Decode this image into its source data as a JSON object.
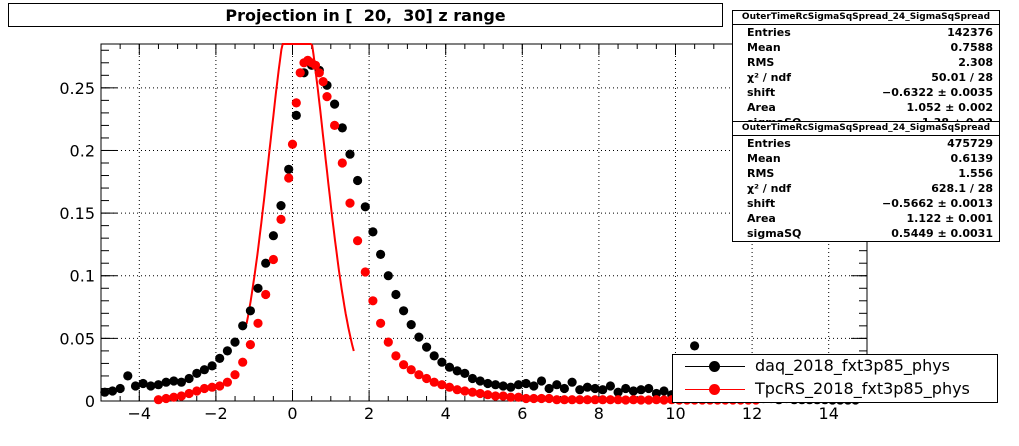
{
  "title": "Projection in [  20,  30] z range",
  "stats_boxes": [
    {
      "header": "OuterTimeRcSigmaSqSpread_24_SigmaSqSpread",
      "rows": [
        {
          "label": "Entries",
          "value": "142376"
        },
        {
          "label": "Mean",
          "value": "0.7588"
        },
        {
          "label": "RMS",
          "value": "2.308"
        },
        {
          "label": "χ² / ndf",
          "value": "50.01 / 28"
        },
        {
          "label": "shift",
          "value": "−0.6322 ± 0.0035"
        },
        {
          "label": "Area",
          "value": "1.052 ± 0.002"
        },
        {
          "label": "sigmaSQ",
          "value": "1.38 ± 0.02"
        }
      ]
    },
    {
      "header": "OuterTimeRcSigmaSqSpread_24_SigmaSqSpread",
      "rows": [
        {
          "label": "Entries",
          "value": "475729"
        },
        {
          "label": "Mean",
          "value": "0.6139"
        },
        {
          "label": "RMS",
          "value": "1.556"
        },
        {
          "label": "χ² / ndf",
          "value": "628.1 / 28"
        },
        {
          "label": "shift",
          "value": "−0.5662 ± 0.0013"
        },
        {
          "label": "Area",
          "value": "1.122 ± 0.001"
        },
        {
          "label": "sigmaSQ",
          "value": "0.5449 ± 0.0031"
        }
      ]
    }
  ],
  "legend": [
    {
      "label": "daq_2018_fxt3p85_phys",
      "color": "#000000"
    },
    {
      "label": "TpcRS_2018_fxt3p85_phys",
      "color": "#ff0000"
    }
  ],
  "chart_data": {
    "type": "scatter",
    "title": "Projection in [  20,  30] z range",
    "xlim": [
      -5,
      15
    ],
    "ylim": [
      0,
      0.285
    ],
    "grid": true,
    "legend_position": "bottom-right",
    "x_ticks": [
      {
        "value": -4,
        "label": "−4"
      },
      {
        "value": -2,
        "label": "−2"
      },
      {
        "value": 0,
        "label": "0"
      },
      {
        "value": 2,
        "label": "2"
      },
      {
        "value": 4,
        "label": "4"
      },
      {
        "value": 6,
        "label": "6"
      },
      {
        "value": 8,
        "label": "8"
      },
      {
        "value": 10,
        "label": "10"
      },
      {
        "value": 12,
        "label": "12"
      },
      {
        "value": 14,
        "label": "14"
      }
    ],
    "y_ticks": [
      {
        "value": 0,
        "label": "0"
      },
      {
        "value": 0.05,
        "label": "0.05"
      },
      {
        "value": 0.1,
        "label": "0.1"
      },
      {
        "value": 0.15,
        "label": "0.15"
      },
      {
        "value": 0.2,
        "label": "0.2"
      },
      {
        "value": 0.25,
        "label": "0.25"
      }
    ],
    "series": [
      {
        "name": "daq_2018_fxt3p85_phys",
        "color": "#000000",
        "points": [
          [
            -4.9,
            0.007
          ],
          [
            -4.7,
            0.008
          ],
          [
            -4.5,
            0.01
          ],
          [
            -4.3,
            0.02
          ],
          [
            -4.1,
            0.012
          ],
          [
            -3.9,
            0.014
          ],
          [
            -3.7,
            0.012
          ],
          [
            -3.5,
            0.013
          ],
          [
            -3.3,
            0.015
          ],
          [
            -3.1,
            0.016
          ],
          [
            -2.9,
            0.015
          ],
          [
            -2.7,
            0.018
          ],
          [
            -2.5,
            0.022
          ],
          [
            -2.3,
            0.025
          ],
          [
            -2.1,
            0.028
          ],
          [
            -1.9,
            0.034
          ],
          [
            -1.7,
            0.04
          ],
          [
            -1.5,
            0.047
          ],
          [
            -1.3,
            0.06
          ],
          [
            -1.1,
            0.072
          ],
          [
            -0.9,
            0.09
          ],
          [
            -0.7,
            0.11
          ],
          [
            -0.5,
            0.132
          ],
          [
            -0.3,
            0.156
          ],
          [
            -0.1,
            0.185
          ],
          [
            0.1,
            0.228
          ],
          [
            0.3,
            0.262
          ],
          [
            0.5,
            0.268
          ],
          [
            0.7,
            0.264
          ],
          [
            0.9,
            0.252
          ],
          [
            1.1,
            0.237
          ],
          [
            1.3,
            0.218
          ],
          [
            1.5,
            0.197
          ],
          [
            1.7,
            0.176
          ],
          [
            1.9,
            0.155
          ],
          [
            2.1,
            0.135
          ],
          [
            2.3,
            0.117
          ],
          [
            2.5,
            0.1
          ],
          [
            2.7,
            0.085
          ],
          [
            2.9,
            0.072
          ],
          [
            3.1,
            0.061
          ],
          [
            3.3,
            0.051
          ],
          [
            3.5,
            0.043
          ],
          [
            3.7,
            0.036
          ],
          [
            3.9,
            0.031
          ],
          [
            4.1,
            0.027
          ],
          [
            4.3,
            0.024
          ],
          [
            4.5,
            0.022
          ],
          [
            4.7,
            0.018
          ],
          [
            4.9,
            0.016
          ],
          [
            5.1,
            0.014
          ],
          [
            5.3,
            0.013
          ],
          [
            5.5,
            0.012
          ],
          [
            5.7,
            0.011
          ],
          [
            5.9,
            0.013
          ],
          [
            6.1,
            0.014
          ],
          [
            6.3,
            0.012
          ],
          [
            6.5,
            0.016
          ],
          [
            6.7,
            0.01
          ],
          [
            6.9,
            0.013
          ],
          [
            7.1,
            0.01
          ],
          [
            7.3,
            0.015
          ],
          [
            7.5,
            0.009
          ],
          [
            7.7,
            0.011
          ],
          [
            7.9,
            0.01
          ],
          [
            8.1,
            0.009
          ],
          [
            8.3,
            0.012
          ],
          [
            8.5,
            0.007
          ],
          [
            8.7,
            0.01
          ],
          [
            8.9,
            0.008
          ],
          [
            9.1,
            0.009
          ],
          [
            9.3,
            0.01
          ],
          [
            9.5,
            0.006
          ],
          [
            9.7,
            0.008
          ],
          [
            9.9,
            0.005
          ],
          [
            10.1,
            0.006
          ],
          [
            10.3,
            0.005
          ],
          [
            10.5,
            0.044
          ],
          [
            10.7,
            0.006
          ],
          [
            10.9,
            0.004
          ],
          [
            11.1,
            0.005
          ],
          [
            11.3,
            0.003
          ],
          [
            11.5,
            0.004
          ],
          [
            11.7,
            0.003
          ],
          [
            11.9,
            0.002
          ],
          [
            12.1,
            0.003
          ],
          [
            12.3,
            0.002
          ],
          [
            12.5,
            0.002
          ],
          [
            12.7,
            0.001
          ],
          [
            12.9,
            0.002
          ],
          [
            13.1,
            0.001
          ],
          [
            13.3,
            0.001
          ],
          [
            13.5,
            0.001
          ],
          [
            13.7,
            0.001
          ],
          [
            13.9,
            0.001
          ],
          [
            14.1,
            0.0
          ],
          [
            14.3,
            0.0
          ],
          [
            14.5,
            0.0
          ],
          [
            14.7,
            0.0
          ]
        ]
      },
      {
        "name": "TpcRS_2018_fxt3p85_phys",
        "color": "#ff0000",
        "points": [
          [
            -3.5,
            0.001
          ],
          [
            -3.3,
            0.002
          ],
          [
            -3.1,
            0.003
          ],
          [
            -2.9,
            0.004
          ],
          [
            -2.7,
            0.006
          ],
          [
            -2.5,
            0.008
          ],
          [
            -2.3,
            0.01
          ],
          [
            -2.1,
            0.011
          ],
          [
            -1.9,
            0.012
          ],
          [
            -1.7,
            0.015
          ],
          [
            -1.5,
            0.021
          ],
          [
            -1.3,
            0.031
          ],
          [
            -1.1,
            0.045
          ],
          [
            -0.9,
            0.062
          ],
          [
            -0.7,
            0.085
          ],
          [
            -0.5,
            0.113
          ],
          [
            -0.3,
            0.145
          ],
          [
            -0.1,
            0.178
          ],
          [
            0.0,
            0.205
          ],
          [
            0.1,
            0.238
          ],
          [
            0.2,
            0.262
          ],
          [
            0.3,
            0.27
          ],
          [
            0.4,
            0.272
          ],
          [
            0.5,
            0.27
          ],
          [
            0.6,
            0.268
          ],
          [
            0.7,
            0.262
          ],
          [
            0.8,
            0.255
          ],
          [
            0.9,
            0.243
          ],
          [
            1.1,
            0.22
          ],
          [
            1.3,
            0.19
          ],
          [
            1.5,
            0.158
          ],
          [
            1.7,
            0.128
          ],
          [
            1.9,
            0.103
          ],
          [
            2.1,
            0.08
          ],
          [
            2.3,
            0.062
          ],
          [
            2.5,
            0.047
          ],
          [
            2.7,
            0.036
          ],
          [
            2.9,
            0.029
          ],
          [
            3.1,
            0.025
          ],
          [
            3.3,
            0.021
          ],
          [
            3.5,
            0.018
          ],
          [
            3.7,
            0.015
          ],
          [
            3.9,
            0.013
          ],
          [
            4.1,
            0.011
          ],
          [
            4.3,
            0.009
          ],
          [
            4.5,
            0.008
          ],
          [
            4.7,
            0.007
          ],
          [
            4.9,
            0.006
          ],
          [
            5.1,
            0.005
          ],
          [
            5.3,
            0.004
          ],
          [
            5.5,
            0.004
          ],
          [
            5.7,
            0.003
          ],
          [
            5.9,
            0.003
          ],
          [
            6.1,
            0.002
          ],
          [
            6.3,
            0.002
          ],
          [
            6.5,
            0.002
          ],
          [
            6.7,
            0.002
          ],
          [
            6.9,
            0.001
          ],
          [
            7.1,
            0.001
          ],
          [
            7.3,
            0.001
          ],
          [
            7.5,
            0.001
          ],
          [
            7.7,
            0.001
          ],
          [
            7.9,
            0.001
          ],
          [
            8.1,
            0.001
          ],
          [
            8.3,
            0.001
          ],
          [
            8.5,
            0.001
          ],
          [
            8.7,
            0.0
          ],
          [
            8.9,
            0.001
          ],
          [
            9.1,
            0.0
          ],
          [
            9.3,
            0.0
          ],
          [
            9.5,
            0.001
          ],
          [
            9.7,
            0.0
          ],
          [
            9.9,
            0.001
          ],
          [
            10.1,
            0.0
          ],
          [
            10.3,
            0.0
          ],
          [
            10.5,
            0.0
          ],
          [
            10.7,
            0.0
          ],
          [
            10.9,
            0.0
          ],
          [
            11.1,
            0.0
          ],
          [
            11.3,
            0.0
          ],
          [
            11.5,
            0.0
          ],
          [
            11.7,
            0.0
          ],
          [
            11.9,
            0.0
          ],
          [
            12.1,
            0.0
          ]
        ]
      }
    ],
    "fits": [
      {
        "name": "daq fit",
        "color": "#ff0000",
        "center": 0.12,
        "sigma": 0.72,
        "amplitude": 0.33,
        "range": [
          -1.2,
          1.6
        ]
      }
    ]
  }
}
